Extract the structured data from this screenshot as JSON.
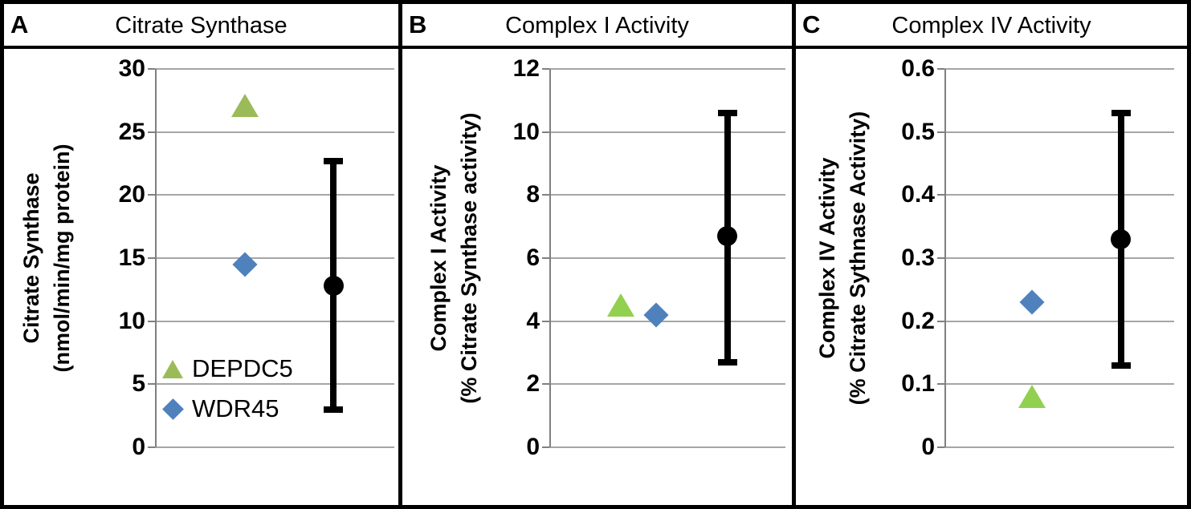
{
  "figure": {
    "description": "Three-panel mitochondrial enzyme activity scatter figure",
    "background": "#ffffff",
    "border_color": "#000000"
  },
  "colors": {
    "green_olive": "#9bbb59",
    "green_bright": "#92d050",
    "blue": "#4f81bd",
    "black": "#000000",
    "gridline_gray": "#a6a6a6",
    "axis_gray": "#808080"
  },
  "chart_data": [
    {
      "panel": "A",
      "type": "scatter",
      "title": "Citrate Synthase",
      "ylabel_lines": [
        "Citrate Synthase",
        "(nmol/min/mg protein)"
      ],
      "ylim": [
        0,
        30
      ],
      "ytick_labels": [
        "0",
        "5",
        "10",
        "15",
        "20",
        "25",
        "30"
      ],
      "grid": true,
      "legend": {
        "position": "inside bottom-left",
        "entries": [
          {
            "label": "DEPDC5",
            "marker": "triangle",
            "color": "#9bbb59"
          },
          {
            "label": "WDR45",
            "marker": "diamond",
            "color": "#4f81bd"
          }
        ]
      },
      "series": [
        {
          "name": "DEPDC5",
          "marker": "triangle",
          "color": "#9bbb59",
          "x_frac": 0.376,
          "value": 27.1
        },
        {
          "name": "WDR45",
          "marker": "diamond",
          "color": "#4f81bd",
          "x_frac": 0.376,
          "value": 14.5
        },
        {
          "name": "mean-with-sd",
          "marker": "circle-errorbar",
          "color": "#000000",
          "x_frac": 0.745,
          "value": 12.8,
          "err_low": 3.0,
          "err_high": 22.7
        }
      ]
    },
    {
      "panel": "B",
      "type": "scatter",
      "title": "Complex I Activity",
      "ylabel_lines": [
        "Complex I Activity",
        "(% Citrate Synthase activity)"
      ],
      "ylim": [
        0,
        12
      ],
      "ytick_labels": [
        "0",
        "2",
        "4",
        "6",
        "8",
        "10",
        "12"
      ],
      "grid": true,
      "series": [
        {
          "name": "DEPDC5",
          "marker": "triangle",
          "color": "#92d050",
          "x_frac": 0.303,
          "value": 4.5
        },
        {
          "name": "WDR45",
          "marker": "diamond",
          "color": "#4f81bd",
          "x_frac": 0.452,
          "value": 4.2
        },
        {
          "name": "mean-with-sd",
          "marker": "circle-errorbar",
          "color": "#000000",
          "x_frac": 0.755,
          "value": 6.7,
          "err_low": 2.7,
          "err_high": 10.6
        }
      ]
    },
    {
      "panel": "C",
      "type": "scatter",
      "title": "Complex IV Activity",
      "ylabel_lines": [
        "Complex IV Activity",
        "(% Citrate Sythnase Activity)"
      ],
      "ylim": [
        0,
        0.6
      ],
      "ytick_labels": [
        "0",
        "0.1",
        "0.2",
        "0.3",
        "0.4",
        "0.5",
        "0.6"
      ],
      "grid": true,
      "series": [
        {
          "name": "DEPDC5",
          "marker": "triangle",
          "color": "#92d050",
          "x_frac": 0.381,
          "value": 0.08
        },
        {
          "name": "WDR45",
          "marker": "diamond",
          "color": "#4f81bd",
          "x_frac": 0.381,
          "value": 0.23
        },
        {
          "name": "mean-with-sd",
          "marker": "circle-errorbar",
          "color": "#000000",
          "x_frac": 0.769,
          "value": 0.33,
          "err_low": 0.13,
          "err_high": 0.53
        }
      ]
    }
  ]
}
